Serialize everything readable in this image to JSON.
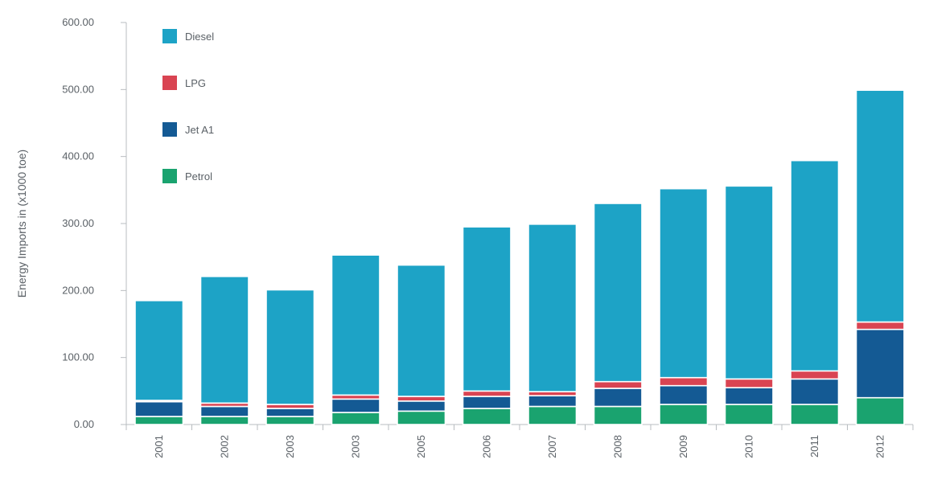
{
  "chart_data": {
    "type": "bar",
    "stacked": true,
    "title": "",
    "xlabel": "",
    "ylabel": "Energy Imports in (x1000 toe)",
    "ylim": [
      0,
      600
    ],
    "yticks": [
      "0.00",
      "100.00",
      "200.00",
      "300.00",
      "400.00",
      "500.00",
      "600.00"
    ],
    "categories": [
      "2001",
      "2002",
      "2003",
      "2003",
      "2005",
      "2006",
      "2007",
      "2008",
      "2009",
      "2010",
      "2011",
      "2012"
    ],
    "series": [
      {
        "name": "Petrol",
        "color": "#1aa36f",
        "values": [
          12,
          12,
          12,
          18,
          20,
          24,
          27,
          27,
          30,
          30,
          30,
          40
        ]
      },
      {
        "name": "Jet A1",
        "color": "#145a94",
        "values": [
          22,
          15,
          12,
          20,
          15,
          18,
          16,
          27,
          28,
          25,
          38,
          102
        ]
      },
      {
        "name": "LPG",
        "color": "#d94452",
        "values": [
          2,
          5,
          6,
          6,
          7,
          8,
          6,
          10,
          12,
          13,
          12,
          11
        ]
      },
      {
        "name": "Diesel",
        "color": "#1da3c6",
        "values": [
          149,
          189,
          171,
          209,
          196,
          245,
          250,
          266,
          282,
          288,
          314,
          346
        ]
      }
    ],
    "legend": [
      "Diesel",
      "LPG",
      "Jet A1",
      "Petrol"
    ],
    "legend_position": "top-left",
    "grid": false
  }
}
